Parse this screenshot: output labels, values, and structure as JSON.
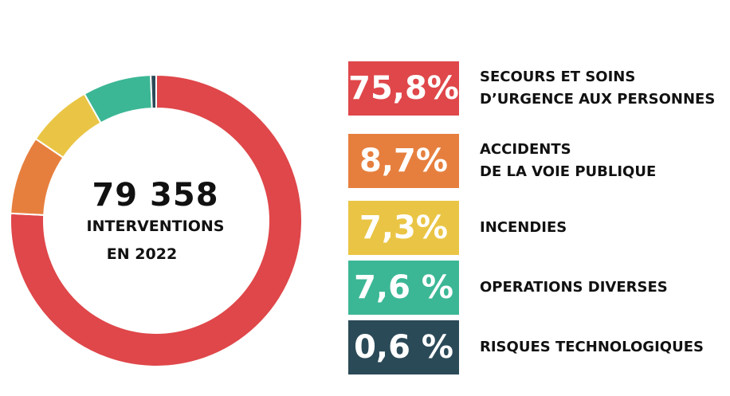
{
  "chart_data": {
    "type": "pie",
    "donut": true,
    "center": {
      "total": "79 358",
      "label_line1": "INTERVENTIONS",
      "label_line2": "EN 2022"
    },
    "slices": [
      {
        "value": 75.8,
        "display": "75,8%",
        "label_lines": [
          "SECOURS ET SOINS",
          "D’URGENCE AUX PERSONNES"
        ],
        "color": "#df474a"
      },
      {
        "value": 8.7,
        "display": "8,7%",
        "label_lines": [
          "ACCIDENTS",
          "DE LA VOIE PUBLIQUE"
        ],
        "color": "#e67f3e"
      },
      {
        "value": 7.3,
        "display": "7,3%",
        "label_lines": [
          "INCENDIES"
        ],
        "color": "#eac545"
      },
      {
        "value": 7.6,
        "display": "7,6 %",
        "label_lines": [
          "OPERATIONS DIVERSES"
        ],
        "color": "#3cb796"
      },
      {
        "value": 0.6,
        "display": "0,6 %",
        "label_lines": [
          "RISQUES TECHNOLOGIQUES"
        ],
        "color": "#2b4a58"
      }
    ]
  }
}
